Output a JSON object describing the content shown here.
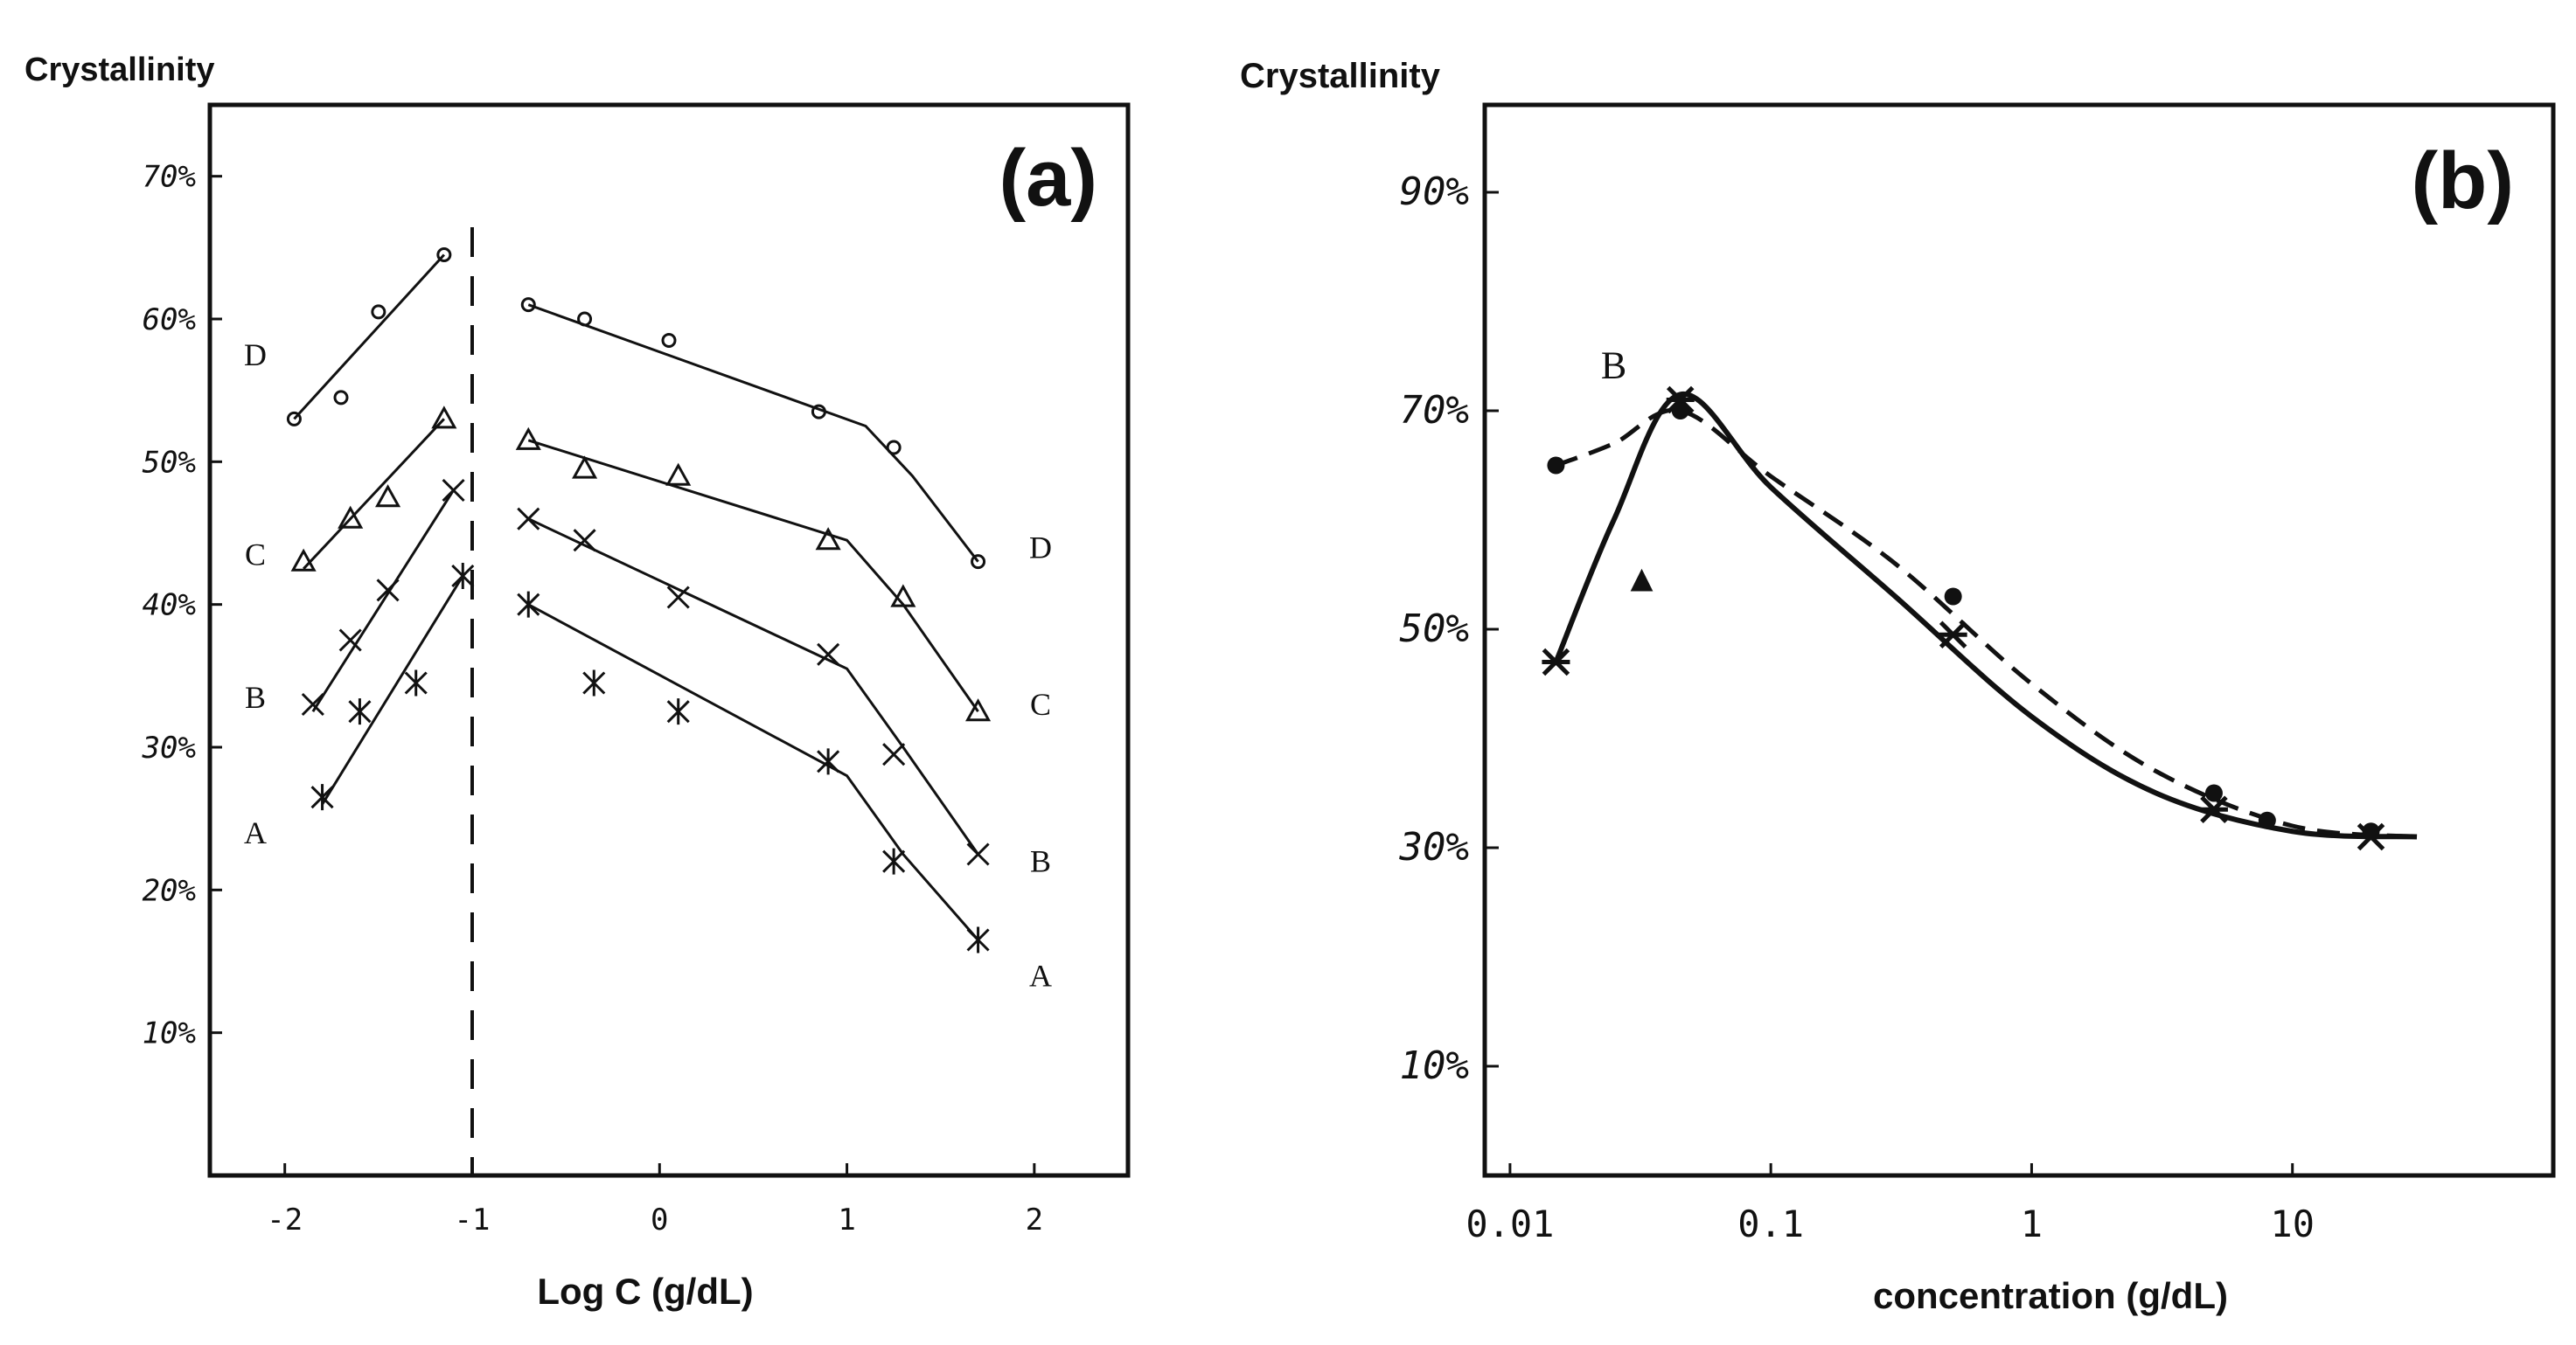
{
  "chart_data": [
    {
      "panel": "a",
      "type": "line",
      "panel_label": "(a)",
      "ylabel": "Crystallinity",
      "xlabel": "Log  C (g/dL)",
      "xlim": [
        -2.4,
        2.5
      ],
      "ylim": [
        0,
        75
      ],
      "xticks": [
        "-2",
        "-1",
        "0",
        "1",
        "2"
      ],
      "xtick_values": [
        -2,
        -1,
        0,
        1,
        2
      ],
      "yticks": [
        "10%",
        "20%",
        "30%",
        "40%",
        "50%",
        "60%",
        "70%"
      ],
      "ytick_values": [
        10,
        20,
        30,
        40,
        50,
        60,
        70
      ],
      "divider_x": -1,
      "series": [
        {
          "name": "D",
          "marker": "circle",
          "points_left": [
            [
              -1.95,
              53
            ],
            [
              -1.7,
              54.5
            ],
            [
              -1.5,
              60.5
            ],
            [
              -1.15,
              64.5
            ]
          ],
          "fit_left": [
            [
              -1.95,
              53
            ],
            [
              -1.15,
              64.5
            ]
          ],
          "points_right": [
            [
              -0.7,
              61
            ],
            [
              -0.4,
              60
            ],
            [
              0.05,
              58.5
            ],
            [
              0.85,
              53.5
            ],
            [
              1.25,
              51
            ],
            [
              1.7,
              43
            ]
          ],
          "fit_right": [
            [
              -0.7,
              61
            ],
            [
              1.1,
              52.5
            ],
            [
              1.35,
              49
            ],
            [
              1.7,
              43
            ]
          ]
        },
        {
          "name": "C",
          "marker": "triangle",
          "points_left": [
            [
              -1.9,
              43
            ],
            [
              -1.65,
              46
            ],
            [
              -1.45,
              47.5
            ],
            [
              -1.15,
              53
            ]
          ],
          "fit_left": [
            [
              -1.9,
              42.5
            ],
            [
              -1.15,
              53
            ]
          ],
          "points_right": [
            [
              -0.7,
              51.5
            ],
            [
              -0.4,
              49.5
            ],
            [
              0.1,
              49
            ],
            [
              0.9,
              44.5
            ],
            [
              1.3,
              40.5
            ],
            [
              1.7,
              32.5
            ]
          ],
          "fit_right": [
            [
              -0.7,
              51.5
            ],
            [
              1.0,
              44.5
            ],
            [
              1.3,
              40
            ],
            [
              1.7,
              32.5
            ]
          ]
        },
        {
          "name": "B",
          "marker": "x",
          "points_left": [
            [
              -1.85,
              33
            ],
            [
              -1.65,
              37.5
            ],
            [
              -1.45,
              41
            ],
            [
              -1.1,
              48
            ]
          ],
          "fit_left": [
            [
              -1.85,
              32.5
            ],
            [
              -1.1,
              48
            ]
          ],
          "points_right": [
            [
              -0.7,
              46
            ],
            [
              -0.4,
              44.5
            ],
            [
              0.1,
              40.5
            ],
            [
              0.9,
              36.5
            ],
            [
              1.25,
              29.5
            ],
            [
              1.7,
              22.5
            ]
          ],
          "fit_right": [
            [
              -0.7,
              46
            ],
            [
              1.0,
              35.5
            ],
            [
              1.3,
              30
            ],
            [
              1.7,
              22.5
            ]
          ]
        },
        {
          "name": "A",
          "marker": "star",
          "points_left": [
            [
              -1.8,
              26.5
            ],
            [
              -1.6,
              32.5
            ],
            [
              -1.3,
              34.5
            ],
            [
              -1.05,
              42
            ]
          ],
          "fit_left": [
            [
              -1.8,
              26
            ],
            [
              -1.05,
              42
            ]
          ],
          "points_right": [
            [
              -0.7,
              40
            ],
            [
              -0.35,
              34.5
            ],
            [
              0.1,
              32.5
            ],
            [
              0.9,
              29
            ],
            [
              1.25,
              22
            ],
            [
              1.7,
              16.5
            ]
          ],
          "fit_right": [
            [
              -0.7,
              40
            ],
            [
              1.0,
              28
            ],
            [
              1.3,
              22.5
            ],
            [
              1.7,
              16.5
            ]
          ]
        }
      ],
      "series_labels_left": [
        {
          "text": "D",
          "y": 57.5
        },
        {
          "text": "C",
          "y": 43.5
        },
        {
          "text": "B",
          "y": 33.5
        },
        {
          "text": "A",
          "y": 24
        }
      ],
      "series_labels_right": [
        {
          "text": "D",
          "y": 44
        },
        {
          "text": "C",
          "y": 33
        },
        {
          "text": "B",
          "y": 22
        },
        {
          "text": "A",
          "y": 14
        }
      ]
    },
    {
      "panel": "b",
      "type": "line",
      "panel_label": "(b)",
      "ylabel": "Crystallinity",
      "xlabel": "concentration (g/dL)",
      "xscale": "log",
      "xlim": [
        0.008,
        100
      ],
      "ylim": [
        0,
        98
      ],
      "xticks": [
        "0.01",
        "0.1",
        "1",
        "10"
      ],
      "xtick_values": [
        0.01,
        0.1,
        1,
        10
      ],
      "yticks": [
        "10%",
        "30%",
        "50%",
        "70%",
        "90%"
      ],
      "ytick_values": [
        10,
        30,
        50,
        70,
        90
      ],
      "series": [
        {
          "name": "solid",
          "style": "solid",
          "curve": [
            [
              0.015,
              47
            ],
            [
              0.025,
              60
            ],
            [
              0.045,
              71.5
            ],
            [
              0.1,
              63
            ],
            [
              0.3,
              53
            ],
            [
              1,
              42
            ],
            [
              3,
              35
            ],
            [
              10,
              31.5
            ],
            [
              30,
              31
            ]
          ],
          "markers": [
            [
              0.015,
              47
            ],
            [
              0.045,
              71
            ],
            [
              0.5,
              49.5
            ],
            [
              5,
              33.5
            ],
            [
              20,
              31
            ]
          ]
        },
        {
          "name": "B",
          "style": "dashed",
          "curve": [
            [
              0.015,
              65
            ],
            [
              0.025,
              67
            ],
            [
              0.045,
              70
            ],
            [
              0.1,
              64
            ],
            [
              0.3,
              56
            ],
            [
              1,
              45
            ],
            [
              3,
              37
            ],
            [
              10,
              32
            ],
            [
              30,
              31
            ]
          ],
          "markers": [
            [
              0.015,
              65
            ],
            [
              0.045,
              70
            ],
            [
              0.5,
              53
            ],
            [
              5,
              35
            ],
            [
              8,
              32.5
            ],
            [
              20,
              31.5
            ]
          ]
        }
      ],
      "annotations": [
        {
          "text": "B",
          "x": 0.025,
          "y": 73
        },
        {
          "text": "▲",
          "x": 0.032,
          "y": 53.5
        }
      ]
    }
  ]
}
